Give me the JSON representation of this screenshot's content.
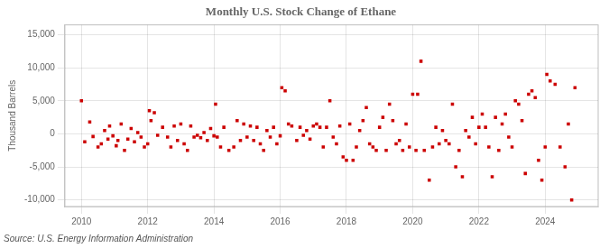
{
  "chart_data": {
    "type": "scatter",
    "title": "Monthly U.S. Stock Change of Ethane",
    "y_label": "Thousand Barrels",
    "annotation": "Source: U.S. Energy Information Administration",
    "color": "#CC0000",
    "marker": "square",
    "grid": true,
    "xlim": [
      2009.5,
      2025.6
    ],
    "xticks": [
      2010,
      2012,
      2014,
      2016,
      2018,
      2020,
      2022,
      2024
    ],
    "ylim": [
      -11000,
      16500
    ],
    "yticks": [
      {
        "value": -10000,
        "label": "-10,000"
      },
      {
        "value": -5000,
        "label": "-5,000"
      },
      0,
      {
        "value": 5000,
        "label": "5,000"
      },
      {
        "value": 10000,
        "label": "10,000"
      },
      {
        "value": 15000,
        "label": "15,000"
      }
    ],
    "x": [
      2010.0,
      2010.1,
      2010.25,
      2010.35,
      2010.5,
      2010.6,
      2010.7,
      2010.8,
      2010.85,
      2010.95,
      2011.05,
      2011.1,
      2011.2,
      2011.3,
      2011.4,
      2011.5,
      2011.6,
      2011.7,
      2011.8,
      2011.9,
      2012.0,
      2012.05,
      2012.1,
      2012.2,
      2012.3,
      2012.45,
      2012.6,
      2012.7,
      2012.8,
      2012.9,
      2013.0,
      2013.1,
      2013.2,
      2013.3,
      2013.4,
      2013.5,
      2013.6,
      2013.7,
      2013.8,
      2013.9,
      2014.0,
      2014.05,
      2014.1,
      2014.2,
      2014.3,
      2014.45,
      2014.6,
      2014.7,
      2014.8,
      2014.9,
      2015.0,
      2015.1,
      2015.2,
      2015.3,
      2015.4,
      2015.5,
      2015.6,
      2015.7,
      2015.8,
      2015.9,
      2016.0,
      2016.05,
      2016.15,
      2016.25,
      2016.35,
      2016.5,
      2016.6,
      2016.7,
      2016.8,
      2016.9,
      2017.0,
      2017.1,
      2017.2,
      2017.3,
      2017.4,
      2017.5,
      2017.6,
      2017.7,
      2017.8,
      2017.9,
      2018.0,
      2018.1,
      2018.2,
      2018.3,
      2018.4,
      2018.5,
      2018.6,
      2018.7,
      2018.8,
      2018.9,
      2019.0,
      2019.1,
      2019.2,
      2019.3,
      2019.4,
      2019.5,
      2019.6,
      2019.7,
      2019.8,
      2019.9,
      2020.0,
      2020.1,
      2020.15,
      2020.25,
      2020.35,
      2020.5,
      2020.6,
      2020.7,
      2020.8,
      2020.9,
      2021.0,
      2021.1,
      2021.2,
      2021.3,
      2021.4,
      2021.5,
      2021.6,
      2021.7,
      2021.8,
      2021.9,
      2022.0,
      2022.1,
      2022.2,
      2022.3,
      2022.4,
      2022.5,
      2022.6,
      2022.7,
      2022.8,
      2022.9,
      2023.0,
      2023.1,
      2023.2,
      2023.3,
      2023.4,
      2023.5,
      2023.6,
      2023.7,
      2023.8,
      2023.9,
      2024.0,
      2024.05,
      2024.15,
      2024.3,
      2024.45,
      2024.6,
      2024.7,
      2024.8,
      2024.9
    ],
    "values": [
      5000,
      -1200,
      1800,
      -400,
      -2000,
      -1500,
      500,
      -800,
      1200,
      -300,
      -1800,
      -1000,
      1500,
      -2500,
      -800,
      800,
      -1200,
      200,
      -500,
      -2000,
      -1500,
      3500,
      2000,
      3200,
      -200,
      1000,
      -500,
      -2000,
      1200,
      -1000,
      1500,
      -1500,
      -2500,
      1200,
      -500,
      -200,
      -600,
      200,
      -1000,
      800,
      -300,
      4500,
      -500,
      -2000,
      1000,
      -2500,
      -2000,
      2000,
      -1000,
      1500,
      -500,
      1200,
      -1000,
      1000,
      -1500,
      -2500,
      500,
      -500,
      1000,
      -1500,
      -300,
      7000,
      6500,
      1500,
      1200,
      -1000,
      1000,
      -200,
      500,
      -800,
      1200,
      1500,
      1000,
      -2000,
      1000,
      5000,
      -500,
      -1500,
      1200,
      -3500,
      -4000,
      1500,
      -4000,
      -2000,
      500,
      2000,
      4000,
      -1500,
      -2000,
      -2500,
      1000,
      2500,
      -2500,
      4500,
      2000,
      -1500,
      -1000,
      -2500,
      1500,
      -2000,
      6000,
      -2500,
      6000,
      11000,
      -2500,
      -7000,
      -2000,
      1000,
      -1500,
      500,
      -1000,
      -1500,
      4500,
      -5000,
      -2500,
      -6500,
      500,
      -500,
      2500,
      -1500,
      1000,
      3000,
      1000,
      -2000,
      -6500,
      2500,
      -2500,
      1500,
      3000,
      -500,
      -2000,
      5000,
      4500,
      2000,
      -6000,
      6000,
      6500,
      5500,
      -4000,
      -7000,
      -2000,
      9000,
      8000,
      7500,
      -2000,
      -5000,
      1500,
      -10000,
      7000
    ]
  }
}
